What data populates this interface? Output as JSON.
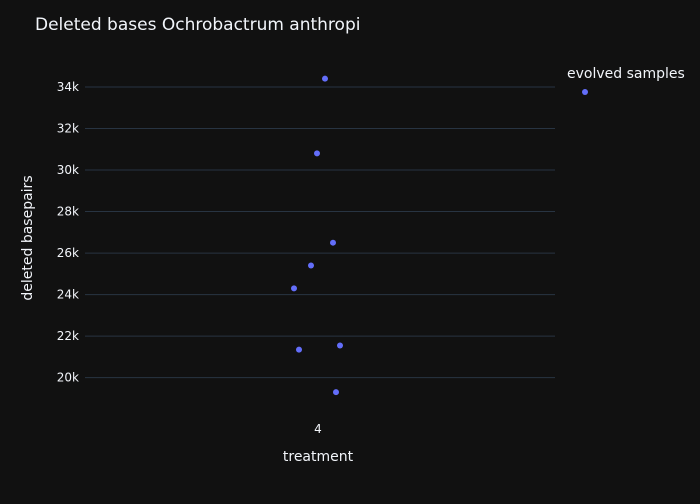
{
  "chart_data": {
    "type": "scatter",
    "title": "Deleted bases Ochrobactrum anthropi",
    "xlabel": "treatment",
    "ylabel": "deleted basepairs",
    "x_categories": [
      "4"
    ],
    "ylim": [
      18200,
      35300
    ],
    "y_ticks": [
      20000,
      22000,
      24000,
      26000,
      28000,
      30000,
      32000,
      34000
    ],
    "y_tick_labels": [
      "20k",
      "22k",
      "24k",
      "26k",
      "28k",
      "30k",
      "32k",
      "34k"
    ],
    "grid": true,
    "legend_position": "top-right",
    "series": [
      {
        "name": "evolved samples",
        "color": "#636efa",
        "points": [
          {
            "x": "4",
            "y": 34400
          },
          {
            "x": "4",
            "y": 30800
          },
          {
            "x": "4",
            "y": 26500
          },
          {
            "x": "4",
            "y": 25400
          },
          {
            "x": "4",
            "y": 24300
          },
          {
            "x": "4",
            "y": 21550
          },
          {
            "x": "4",
            "y": 21350
          },
          {
            "x": "4",
            "y": 19300
          }
        ]
      }
    ]
  },
  "colors": {
    "background": "#111111",
    "grid": "#283442",
    "text": "#f2f5fa",
    "marker": "#636efa"
  }
}
